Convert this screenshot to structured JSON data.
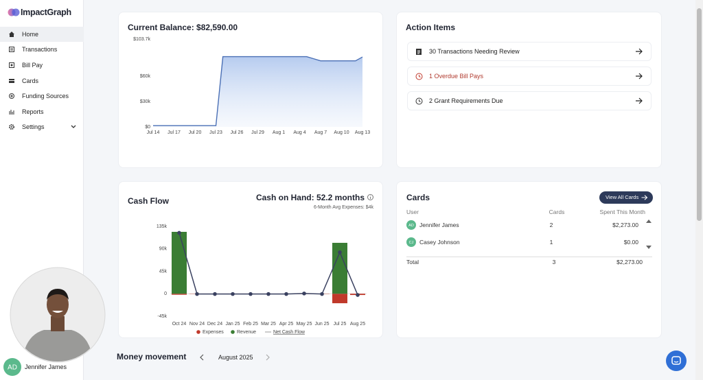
{
  "sidebar": {
    "brand": "ImpactGraph",
    "nav": [
      "Home",
      "Transactions",
      "Bill Pay",
      "Cards",
      "Funding Sources",
      "Reports",
      "Settings"
    ],
    "user": {
      "initials": "AD",
      "name": "Jennifer James"
    }
  },
  "chart_data": [
    {
      "type": "line",
      "title": "Current Balance: $82,590.00",
      "categories": [
        "Jul 14",
        null,
        null,
        "Jul 17",
        null,
        null,
        "Jul 20",
        null,
        null,
        "Jul 23",
        null,
        null,
        "Jul 26",
        null,
        null,
        "Jul 29",
        null,
        null,
        "Aug 1",
        null,
        null,
        "Aug 4",
        null,
        null,
        "Aug 7",
        null,
        null,
        "Aug 10",
        null,
        null,
        "Aug 13"
      ],
      "values": [
        1500,
        1500,
        1500,
        1500,
        1500,
        1500,
        1500,
        1500,
        1500,
        1500,
        83000,
        83000,
        83000,
        83000,
        83000,
        83000,
        83000,
        83000,
        83000,
        83000,
        83000,
        83000,
        83000,
        80500,
        78000,
        78000,
        78000,
        78000,
        78000,
        78000,
        82590
      ],
      "color": "#4a6fb5",
      "area": true,
      "ylim": [
        0,
        103700
      ],
      "yticks": [
        {
          "value": 0,
          "label": "$0"
        },
        {
          "value": 30000,
          "label": "$30k"
        },
        {
          "value": 60000,
          "label": "$60k"
        },
        {
          "value": 103700,
          "label": "$103.7k"
        }
      ]
    },
    {
      "type": "bar-line",
      "title": "Cash Flow",
      "categories": [
        "Oct 24",
        "Nov 24",
        "Dec 24",
        "Jan 25",
        "Feb 25",
        "Mar 25",
        "Apr 25",
        "May 25",
        "Jun 25",
        "Jul 25",
        "Aug 25"
      ],
      "series": [
        {
          "name": "Expenses",
          "type": "bar",
          "color": "#c0392b",
          "values": [
            -2000,
            -500,
            -500,
            -500,
            -500,
            -500,
            -500,
            -500,
            -500,
            -19000,
            -2500
          ]
        },
        {
          "name": "Revenue",
          "type": "bar",
          "color": "#3a7d34",
          "values": [
            124000,
            0,
            0,
            0,
            0,
            0,
            0,
            1000,
            0,
            102000,
            0
          ]
        },
        {
          "name": "Net Cash Flow",
          "type": "line",
          "color": "#3a4160",
          "values": [
            122000,
            -500,
            -500,
            -500,
            -500,
            -500,
            -500,
            500,
            -500,
            83000,
            -2500
          ]
        }
      ],
      "ylim": [
        -45000,
        135000
      ],
      "yticks": [
        {
          "value": 135000,
          "label": "135k"
        },
        {
          "value": 90000,
          "label": "90k"
        },
        {
          "value": 45000,
          "label": "45k"
        },
        0,
        {
          "value": -45000,
          "label": "-45k"
        }
      ]
    }
  ],
  "cash_flow": {
    "cash_on_hand": "Cash on Hand: 52.2 months",
    "avg_expenses": "6-Month Avg Expenses: $4k"
  },
  "action_items": {
    "title": "Action Items",
    "items": [
      "30 Transactions Needing Review",
      "1 Overdue Bill Pays",
      "2 Grant Requirements Due"
    ]
  },
  "cards": {
    "title": "Cards",
    "button": "View All Cards",
    "columns": [
      "User",
      "Cards",
      "Spent This Month"
    ],
    "rows": [
      {
        "initials": "AD",
        "name": "Jennifer James",
        "cards": 2,
        "spent": "$2,273.00"
      },
      {
        "initials": "CJ",
        "name": "Casey Johnson",
        "cards": 1,
        "spent": "$0.00"
      }
    ],
    "total": {
      "label": "Total",
      "cards": 3,
      "spent": "$2,273.00"
    }
  },
  "money_movement": {
    "title": "Money movement",
    "month": "August 2025"
  }
}
